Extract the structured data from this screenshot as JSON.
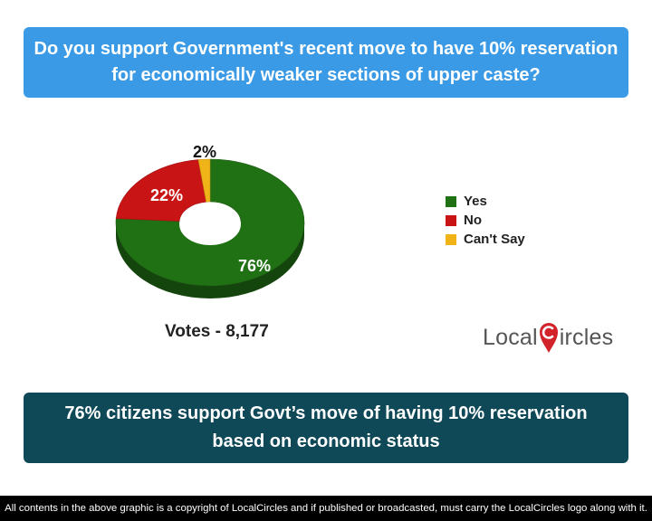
{
  "question": {
    "line1": "Do you support Government's recent move to have 10% reservation",
    "line2": "for economically weaker sections of upper caste?"
  },
  "chart_data": {
    "type": "pie",
    "donut": true,
    "three_d": true,
    "categories": [
      "Yes",
      "No",
      "Can't Say"
    ],
    "values": [
      76,
      22,
      2
    ],
    "labels": [
      "76%",
      "22%",
      "2%"
    ],
    "colors": [
      "#207014",
      "#c81414",
      "#f0b418"
    ],
    "legend_position": "right"
  },
  "legend": {
    "items": [
      {
        "label": "Yes",
        "color": "#207014"
      },
      {
        "label": "No",
        "color": "#c81414"
      },
      {
        "label": "Can't Say",
        "color": "#f0b418"
      }
    ]
  },
  "votes": "Votes - 8,177",
  "logo": {
    "part1": "Local",
    "part2": "ircles"
  },
  "conclusion": {
    "line1": "76% citizens support Govt’s move of having 10% reservation",
    "line2": "based on economic status"
  },
  "footer": "All contents in the above graphic is a copyright of LocalCircles and if published or broadcasted, must carry the LocalCircles logo along with it.",
  "colors": {
    "question_bg": "#3a9ae6",
    "conclusion_bg": "#0f4958",
    "footer_bg": "#000000",
    "logo_accent": "#d2232a"
  }
}
